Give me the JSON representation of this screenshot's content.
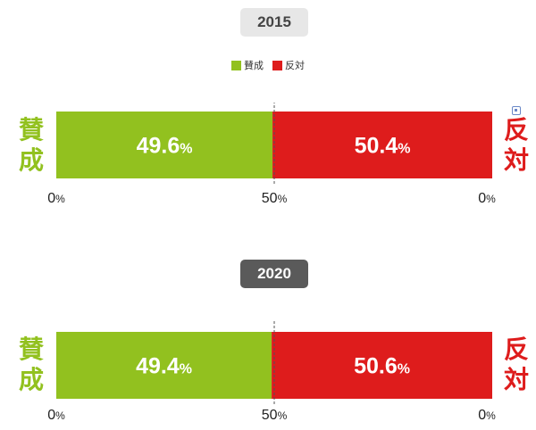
{
  "colors": {
    "agree": "#92c11f",
    "oppose": "#de1c1c",
    "badge_light": "#e7e7e7",
    "badge_dark": "#5a5a5a"
  },
  "legend": [
    {
      "label": "賛成",
      "color": "#92c11f"
    },
    {
      "label": "反対",
      "color": "#de1c1c"
    }
  ],
  "labels": {
    "agree": "賛成",
    "oppose": "反対"
  },
  "icons": {
    "corner": "image-preview-icon"
  },
  "chart_data": [
    {
      "type": "bar",
      "title": "2015",
      "stacked": true,
      "orientation": "horizontal",
      "series": [
        {
          "name": "賛成",
          "value": 49.6,
          "label": "49.6",
          "color": "#92c11f"
        },
        {
          "name": "反対",
          "value": 50.4,
          "label": "50.4",
          "color": "#de1c1c"
        }
      ],
      "ticks": [
        {
          "value": "0",
          "unit": "%"
        },
        {
          "value": "50",
          "unit": "%"
        },
        {
          "value": "0",
          "unit": "%"
        }
      ],
      "reference_line": 50,
      "badge_style": "light"
    },
    {
      "type": "bar",
      "title": "2020",
      "stacked": true,
      "orientation": "horizontal",
      "series": [
        {
          "name": "賛成",
          "value": 49.4,
          "label": "49.4",
          "color": "#92c11f"
        },
        {
          "name": "反対",
          "value": 50.6,
          "label": "50.6",
          "color": "#de1c1c"
        }
      ],
      "ticks": [
        {
          "value": "0",
          "unit": "%"
        },
        {
          "value": "50",
          "unit": "%"
        },
        {
          "value": "0",
          "unit": "%"
        }
      ],
      "reference_line": 50,
      "badge_style": "dark"
    }
  ]
}
